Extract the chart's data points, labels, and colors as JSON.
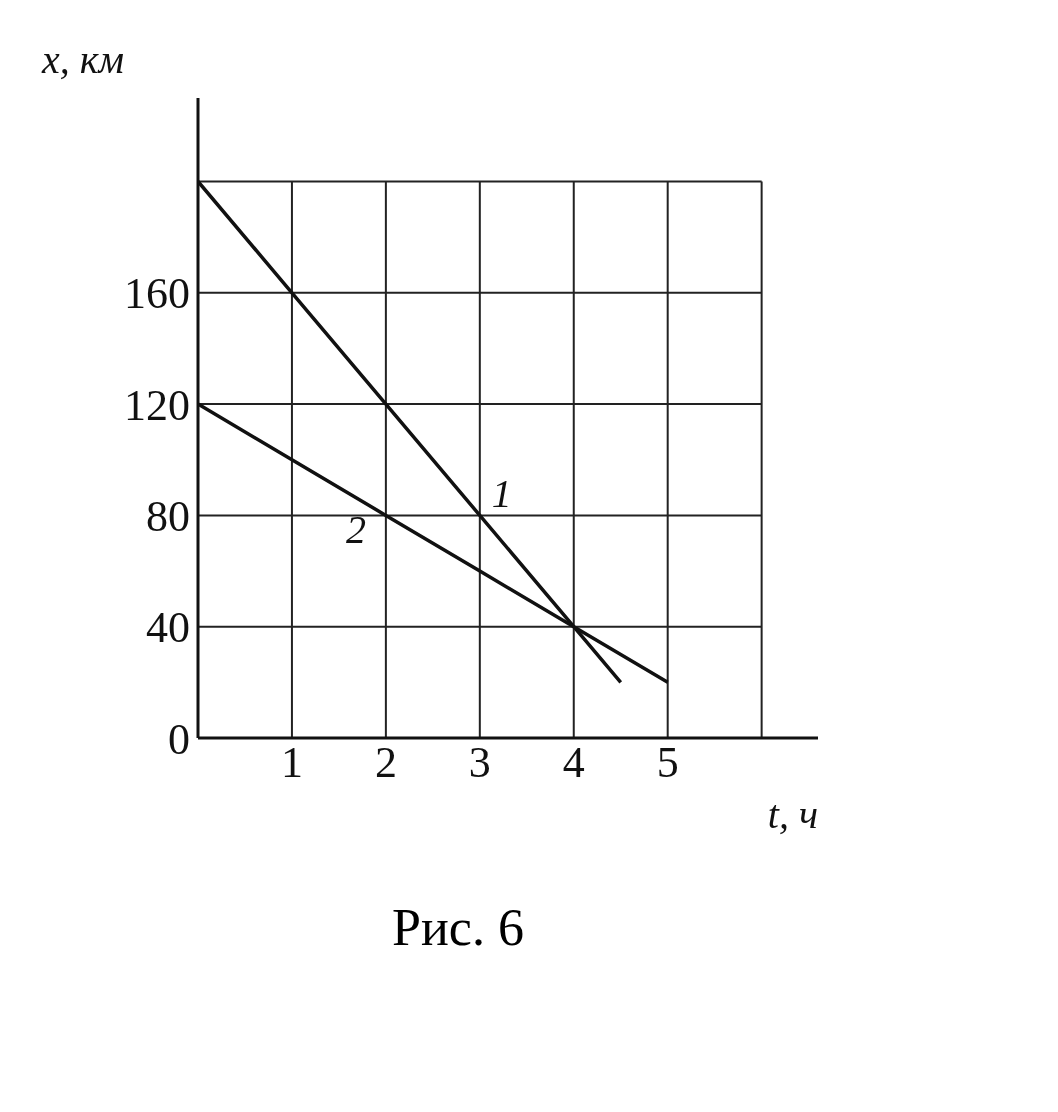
{
  "chart_data": {
    "type": "line",
    "xlabel": "t, ч",
    "ylabel": "x, км",
    "annotations": [
      "Рис. 6"
    ],
    "series": [
      {
        "name": "1",
        "color": "#111111",
        "x": [
          0,
          1,
          2,
          3,
          4,
          4.5
        ],
        "values": [
          200,
          160,
          120,
          80,
          40,
          20
        ]
      },
      {
        "name": "2",
        "color": "#111111",
        "x": [
          0,
          1,
          2,
          3,
          4,
          5
        ],
        "values": [
          120,
          100,
          80,
          60,
          40,
          20
        ]
      }
    ],
    "xlim": [
      0,
      6.6
    ],
    "ylim": [
      0,
      230
    ],
    "xticks": [
      1,
      2,
      3,
      4,
      5,
      {
        "value": 6,
        "label": null
      }
    ],
    "yticks": [
      0,
      40,
      80,
      120,
      160,
      {
        "value": 200,
        "label": null
      }
    ],
    "grid": true,
    "marker": "none",
    "line_style": "solid"
  }
}
